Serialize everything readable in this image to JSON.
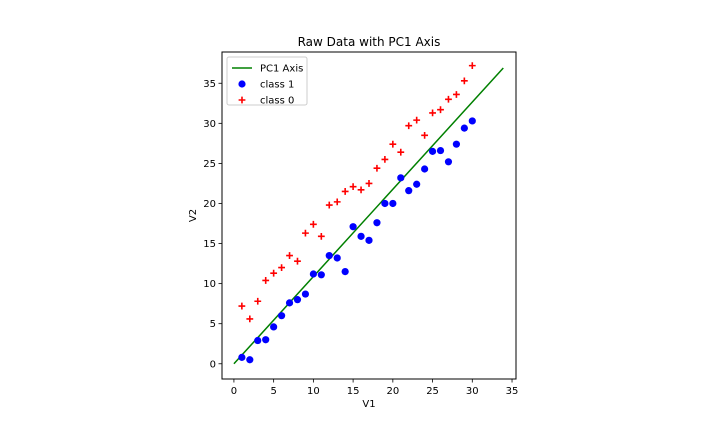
{
  "chart_data": {
    "type": "scatter",
    "title": "Raw Data with PC1 Axis",
    "xlabel": "V1",
    "ylabel": "V2",
    "xlim": [
      -1.5,
      35.5
    ],
    "ylim": [
      -1.9,
      38.9
    ],
    "xticks": [
      0,
      5,
      10,
      15,
      20,
      25,
      30,
      35
    ],
    "yticks": [
      0,
      5,
      10,
      15,
      20,
      25,
      30,
      35
    ],
    "grid": false,
    "legend_position": "top-left",
    "legend": [
      "PC1 Axis",
      "class 1",
      "class 0"
    ],
    "series": [
      {
        "name": "PC1 Axis",
        "kind": "line",
        "color": "#008000",
        "x": [
          0,
          33.9
        ],
        "y": [
          0,
          36.9
        ]
      },
      {
        "name": "class 1",
        "kind": "scatter",
        "marker": "circle",
        "color": "#0000ff",
        "x": [
          1,
          2,
          3,
          4,
          5,
          6,
          7,
          8,
          9,
          10,
          11,
          12,
          13,
          14,
          15,
          16,
          17,
          18,
          19,
          20,
          21,
          22,
          23,
          24,
          25,
          26,
          27,
          28,
          29,
          30
        ],
        "y": [
          0.8,
          0.5,
          2.9,
          3.0,
          4.6,
          6.0,
          7.6,
          8.0,
          8.7,
          11.2,
          11.1,
          13.5,
          13.2,
          11.5,
          17.1,
          15.9,
          15.4,
          17.6,
          20.0,
          20.0,
          23.2,
          21.6,
          22.4,
          24.3,
          26.5,
          26.6,
          25.2,
          27.4,
          29.4,
          30.3
        ]
      },
      {
        "name": "class 0",
        "kind": "scatter",
        "marker": "plus",
        "color": "#ff0000",
        "x": [
          1,
          2,
          3,
          4,
          5,
          6,
          7,
          8,
          9,
          10,
          11,
          12,
          13,
          14,
          15,
          16,
          17,
          18,
          19,
          20,
          21,
          22,
          23,
          24,
          25,
          26,
          27,
          28,
          29,
          30
        ],
        "y": [
          7.2,
          5.6,
          7.8,
          10.4,
          11.3,
          12.0,
          13.5,
          12.8,
          16.3,
          17.4,
          15.9,
          19.8,
          20.2,
          21.5,
          22.1,
          21.7,
          22.5,
          24.4,
          25.5,
          27.4,
          26.4,
          29.7,
          30.4,
          28.5,
          31.3,
          31.7,
          33.0,
          33.6,
          35.3,
          37.2
        ]
      }
    ]
  }
}
